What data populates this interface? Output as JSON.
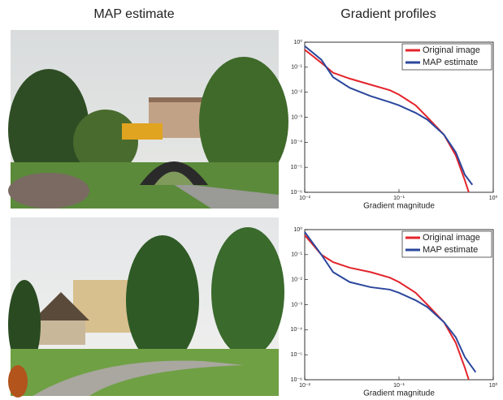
{
  "headings": [
    "MAP estimate",
    "Gradient profiles"
  ],
  "chart_data": [
    {
      "type": "line",
      "xlabel": "Gradient magnitude",
      "xscale": "log",
      "yscale": "log",
      "xlim": [
        0.01,
        1
      ],
      "ylim": [
        1e-06,
        1
      ],
      "xticks": [
        {
          "value": 0.01,
          "label": "10⁻²"
        },
        {
          "value": 0.1,
          "label": "10⁻¹"
        },
        {
          "value": 1,
          "label": "10⁰"
        }
      ],
      "yticks": [
        {
          "value": 1e-06,
          "label": "10⁻⁶"
        },
        {
          "value": 1e-05,
          "label": "10⁻⁵"
        },
        {
          "value": 0.0001,
          "label": "10⁻⁴"
        },
        {
          "value": 0.001,
          "label": "10⁻³"
        },
        {
          "value": 0.01,
          "label": "10⁻²"
        },
        {
          "value": 0.1,
          "label": "10⁻¹"
        },
        {
          "value": 1,
          "label": "10⁰"
        }
      ],
      "legend": "upper right",
      "series": [
        {
          "name": "Original image",
          "color": "#e3242b",
          "x": [
            0.01,
            0.015,
            0.02,
            0.03,
            0.05,
            0.08,
            0.1,
            0.15,
            0.2,
            0.3,
            0.4,
            0.5,
            0.55
          ],
          "values": [
            0.5,
            0.15,
            0.06,
            0.035,
            0.02,
            0.012,
            0.008,
            0.003,
            0.001,
            0.0002,
            3e-05,
            3e-06,
            1e-06
          ]
        },
        {
          "name": "MAP estimate",
          "color": "#2b479c",
          "x": [
            0.01,
            0.015,
            0.02,
            0.03,
            0.05,
            0.08,
            0.1,
            0.15,
            0.2,
            0.3,
            0.4,
            0.5,
            0.6
          ],
          "values": [
            0.7,
            0.2,
            0.04,
            0.015,
            0.007,
            0.004,
            0.003,
            0.0015,
            0.0008,
            0.0002,
            4e-05,
            5e-06,
            2e-06
          ]
        }
      ]
    },
    {
      "type": "line",
      "xlabel": "Gradient magnitude",
      "xscale": "log",
      "yscale": "log",
      "xlim": [
        0.01,
        1
      ],
      "ylim": [
        1e-06,
        1
      ],
      "xticks": [
        {
          "value": 0.01,
          "label": "10⁻²"
        },
        {
          "value": 0.1,
          "label": "10⁻¹"
        },
        {
          "value": 1,
          "label": "10⁰"
        }
      ],
      "yticks": [
        {
          "value": 1e-06,
          "label": "10⁻⁶"
        },
        {
          "value": 1e-05,
          "label": "10⁻⁵"
        },
        {
          "value": 0.0001,
          "label": "10⁻⁴"
        },
        {
          "value": 0.001,
          "label": "10⁻³"
        },
        {
          "value": 0.01,
          "label": "10⁻²"
        },
        {
          "value": 0.1,
          "label": "10⁻¹"
        },
        {
          "value": 1,
          "label": "10⁰"
        }
      ],
      "legend": "upper right",
      "series": [
        {
          "name": "Original image",
          "color": "#e3242b",
          "x": [
            0.01,
            0.015,
            0.02,
            0.03,
            0.05,
            0.08,
            0.1,
            0.15,
            0.2,
            0.3,
            0.4,
            0.5,
            0.55
          ],
          "values": [
            0.6,
            0.1,
            0.05,
            0.03,
            0.02,
            0.012,
            0.008,
            0.003,
            0.001,
            0.0002,
            3e-05,
            3e-06,
            1e-06
          ]
        },
        {
          "name": "MAP estimate",
          "color": "#2b479c",
          "x": [
            0.01,
            0.015,
            0.02,
            0.03,
            0.05,
            0.08,
            0.1,
            0.15,
            0.2,
            0.3,
            0.4,
            0.5,
            0.65
          ],
          "values": [
            0.8,
            0.1,
            0.02,
            0.008,
            0.005,
            0.004,
            0.003,
            0.0015,
            0.0008,
            0.0002,
            5e-05,
            8e-06,
            2e-06
          ]
        }
      ]
    }
  ]
}
